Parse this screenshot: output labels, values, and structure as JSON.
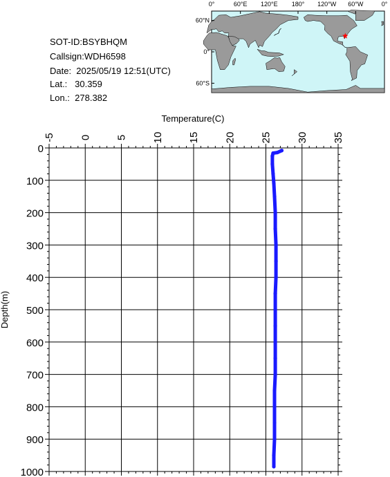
{
  "info": {
    "sot_id": "SOT-ID:BSYBHQM",
    "callsign": "Callsign:WDH6598",
    "date": "Date:  2025/05/19 12:51(UTC)",
    "lat": "Lat.:   30.359",
    "lon": "Lon.:  278.382"
  },
  "map": {
    "top_labels": [
      "0°",
      "60°E",
      "120°E",
      "180°",
      "120°W",
      "60°W",
      "0°"
    ],
    "left_labels": [
      "60°N",
      "0°",
      "60°S"
    ],
    "ocean_color": "#cff5f7",
    "land_color": "#9a9a9a",
    "marker": {
      "lat": 30.359,
      "lon": 278.382,
      "color": "#ff0000"
    }
  },
  "chart_data": {
    "type": "line",
    "xlabel": "Temperature(C)",
    "ylabel": "Depth(m)",
    "xlim": [
      -5,
      35
    ],
    "ylim": [
      0,
      1000
    ],
    "y_inverted": true,
    "x_axis_position": "top",
    "x_ticks": [
      -5,
      0,
      5,
      10,
      15,
      20,
      25,
      30,
      35
    ],
    "y_ticks": [
      0,
      100,
      200,
      300,
      400,
      500,
      600,
      700,
      800,
      900,
      1000
    ],
    "grid": true,
    "series": [
      {
        "color": "#1a1aff",
        "points": [
          [
            27.2,
            8
          ],
          [
            26.6,
            14
          ],
          [
            26.0,
            16
          ],
          [
            25.9,
            25
          ],
          [
            25.9,
            50
          ],
          [
            26.0,
            80
          ],
          [
            26.1,
            110
          ],
          [
            26.2,
            150
          ],
          [
            26.3,
            200
          ],
          [
            26.3,
            250
          ],
          [
            26.4,
            300
          ],
          [
            26.4,
            350
          ],
          [
            26.4,
            400
          ],
          [
            26.3,
            450
          ],
          [
            26.3,
            500
          ],
          [
            26.3,
            550
          ],
          [
            26.3,
            600
          ],
          [
            26.3,
            650
          ],
          [
            26.3,
            700
          ],
          [
            26.2,
            750
          ],
          [
            26.2,
            800
          ],
          [
            26.2,
            850
          ],
          [
            26.2,
            900
          ],
          [
            26.1,
            950
          ],
          [
            26.1,
            985
          ]
        ]
      }
    ]
  }
}
